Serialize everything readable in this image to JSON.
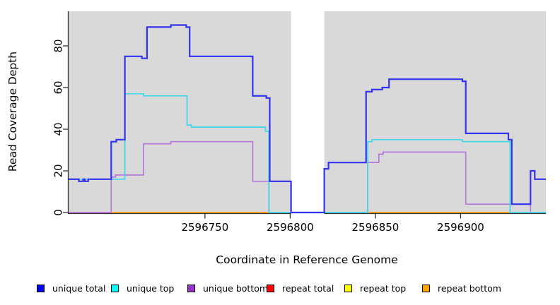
{
  "chart_data": {
    "type": "line",
    "subtype": "step-after-coverage-plot",
    "title": "",
    "xlabel": "Coordinate in Reference Genome",
    "ylabel": "Read Coverage Depth",
    "x_range": [
      2596670,
      2596950
    ],
    "y_range": [
      0,
      96
    ],
    "x_ticks": [
      2596750,
      2596800,
      2596850,
      2596900
    ],
    "y_ticks": [
      0,
      20,
      40,
      60,
      80
    ],
    "grid": false,
    "plot_background": "#d9d9d9",
    "gap_region": {
      "from": 2596800.5,
      "to": 2596820,
      "color": "#ffffff"
    },
    "series": [
      {
        "name": "repeat total",
        "color": "#ff0000",
        "width": 1.6,
        "points": [
          [
            2596670,
            0
          ],
          [
            2596950,
            0
          ]
        ]
      },
      {
        "name": "repeat top",
        "color": "#ffff00",
        "width": 1.6,
        "points": [
          [
            2596670,
            0
          ],
          [
            2596950,
            0
          ]
        ]
      },
      {
        "name": "repeat bottom",
        "color": "#ff9c20",
        "width": 2,
        "points": [
          [
            2596670,
            0
          ],
          [
            2596950,
            0
          ]
        ]
      },
      {
        "name": "unique bottom",
        "color": "#b579da",
        "width": 1.7,
        "points": [
          [
            2596670,
            0
          ],
          [
            2596695,
            17
          ],
          [
            2596697.5,
            18
          ],
          [
            2596714,
            33
          ],
          [
            2596730,
            34
          ],
          [
            2596778,
            15
          ],
          [
            2596787.5,
            0
          ],
          [
            2596845.5,
            24
          ],
          [
            2596852,
            28
          ],
          [
            2596854.5,
            29
          ],
          [
            2596903,
            4
          ],
          [
            2596941,
            0
          ],
          [
            2596950,
            0
          ]
        ]
      },
      {
        "name": "unique top",
        "color": "#3fd6e8",
        "width": 1.7,
        "points": [
          [
            2596670,
            16
          ],
          [
            2596703,
            57
          ],
          [
            2596714,
            56
          ],
          [
            2596739.5,
            42
          ],
          [
            2596742,
            41
          ],
          [
            2596785.5,
            39
          ],
          [
            2596787.5,
            0
          ],
          [
            2596845.5,
            34
          ],
          [
            2596848,
            35
          ],
          [
            2596901,
            34
          ],
          [
            2596929,
            0
          ],
          [
            2596950,
            0
          ]
        ]
      },
      {
        "name": "unique total",
        "color": "#3232f0",
        "width": 2.2,
        "points": [
          [
            2596670,
            16
          ],
          [
            2596676,
            15
          ],
          [
            2596678.5,
            16
          ],
          [
            2596679.5,
            15
          ],
          [
            2596681.5,
            16
          ],
          [
            2596695,
            34
          ],
          [
            2596698,
            35
          ],
          [
            2596703,
            75
          ],
          [
            2596713,
            74
          ],
          [
            2596716,
            89
          ],
          [
            2596730,
            90
          ],
          [
            2596739,
            89
          ],
          [
            2596741,
            75
          ],
          [
            2596778,
            56
          ],
          [
            2596786,
            55
          ],
          [
            2596788,
            15
          ],
          [
            2596800.5,
            0
          ],
          [
            2596820,
            21
          ],
          [
            2596822.5,
            24
          ],
          [
            2596844.5,
            58
          ],
          [
            2596848,
            59
          ],
          [
            2596854,
            60
          ],
          [
            2596858,
            64
          ],
          [
            2596901,
            63
          ],
          [
            2596903,
            38
          ],
          [
            2596928,
            35
          ],
          [
            2596930,
            4
          ],
          [
            2596941,
            20
          ],
          [
            2596943.5,
            16
          ],
          [
            2596950,
            16
          ]
        ]
      }
    ],
    "baseline_segments": [
      {
        "from": 2596670,
        "to": 2596695,
        "color": "#d46090"
      },
      {
        "from": 2596695,
        "to": 2596788,
        "color": "#ff9c20"
      },
      {
        "from": 2596788,
        "to": 2596800.5,
        "color": "#86d29e"
      },
      {
        "from": 2596820,
        "to": 2596845.5,
        "color": "#86d29e"
      },
      {
        "from": 2596845.5,
        "to": 2596929,
        "color": "#ff9c20"
      },
      {
        "from": 2596929,
        "to": 2596950,
        "color": "#86d29e"
      }
    ],
    "legend": {
      "position": "bottom",
      "items": [
        {
          "label": "unique total",
          "color": "#0000f0"
        },
        {
          "label": "unique top",
          "color": "#00ffff"
        },
        {
          "label": "unique bottom",
          "color": "#9933cc"
        },
        {
          "label": "repeat total",
          "color": "#ff0000"
        },
        {
          "label": "repeat top",
          "color": "#ffff00"
        },
        {
          "label": "repeat bottom",
          "color": "#ffa500"
        }
      ]
    }
  },
  "axes": {
    "x_title": "Coordinate in Reference Genome",
    "y_title": "Read Coverage Depth"
  },
  "style": {
    "axis_color": "#303030",
    "tick_label_color": "#000000"
  }
}
